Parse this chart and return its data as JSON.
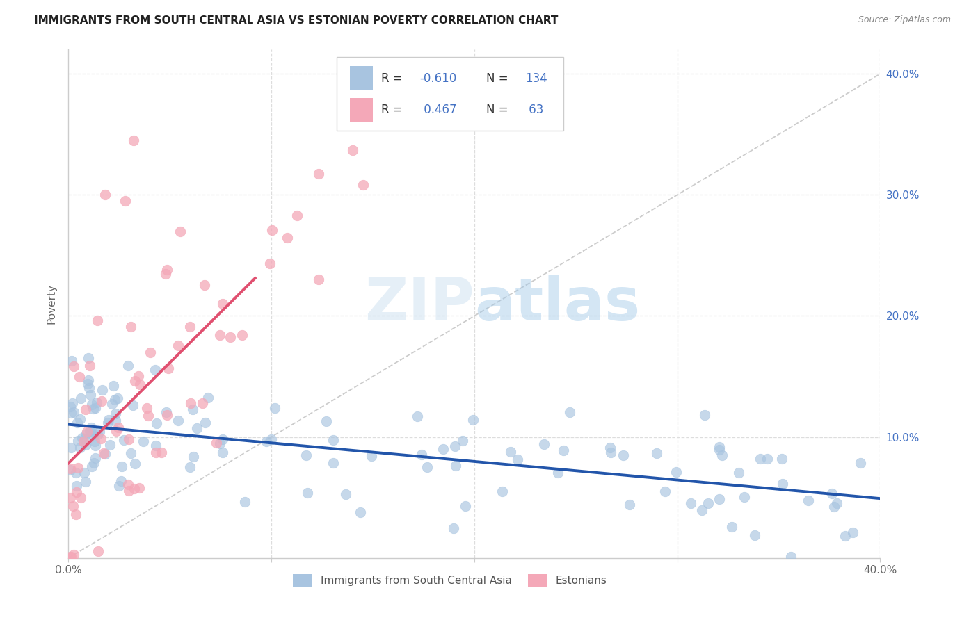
{
  "title": "IMMIGRANTS FROM SOUTH CENTRAL ASIA VS ESTONIAN POVERTY CORRELATION CHART",
  "source": "Source: ZipAtlas.com",
  "ylabel": "Poverty",
  "xmin": 0.0,
  "xmax": 0.4,
  "ymin": 0.0,
  "ymax": 0.42,
  "blue_R": "-0.610",
  "blue_N": "134",
  "pink_R": "0.467",
  "pink_N": "63",
  "blue_color": "#a8c4e0",
  "pink_color": "#f4a8b8",
  "blue_line_color": "#2255aa",
  "pink_line_color": "#e05070",
  "diagonal_color": "#cccccc",
  "legend_label_blue": "Immigrants from South Central Asia",
  "legend_label_pink": "Estonians",
  "watermark_zip": "ZIP",
  "watermark_atlas": "atlas",
  "background_color": "#ffffff",
  "grid_color": "#dddddd",
  "tick_color": "#4472c4",
  "title_color": "#222222",
  "source_color": "#888888",
  "ylabel_color": "#666666"
}
